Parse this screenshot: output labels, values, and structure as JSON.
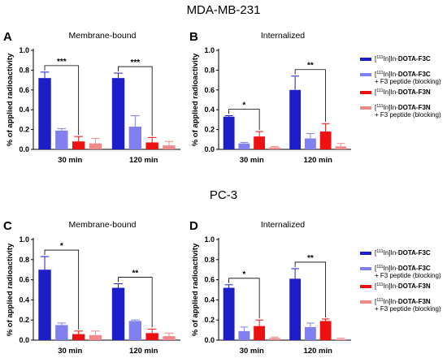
{
  "row_titles": [
    "MDA-MB-231",
    "PC-3"
  ],
  "panel_letters": [
    "A",
    "B",
    "C",
    "D"
  ],
  "panel_titles": [
    "Membrane-bound",
    "Internalized",
    "Membrane-bound",
    "Internalized"
  ],
  "legend": [
    {
      "sup": "111",
      "prefix_a": "[",
      "prefix_b": "In]In-",
      "bold": "DOTA-F3C",
      "line2": "",
      "color": "#1e1ec8"
    },
    {
      "sup": "111",
      "prefix_a": "[",
      "prefix_b": "In]In-",
      "bold": "DOTA-F3C",
      "line2": "+ F3 peptide (blocking)",
      "color": "#8080f0"
    },
    {
      "sup": "111",
      "prefix_a": "[",
      "prefix_b": "In]In-",
      "bold": "DOTA-F3N",
      "line2": "",
      "color": "#ee1111"
    },
    {
      "sup": "111",
      "prefix_a": "[",
      "prefix_b": "In]In-",
      "bold": "DOTA-F3N",
      "line2": "+ F3 peptide (blocking)",
      "color": "#f08a8a"
    }
  ],
  "chart_data": [
    {
      "type": "bar",
      "panel": "A",
      "title": "Membrane-bound",
      "ylabel": "% of applied radioactivity",
      "xlabel": "",
      "categories": [
        "30 min",
        "120 min"
      ],
      "ylim": [
        0,
        1.0
      ],
      "yticks": [
        "0.0",
        "0.2",
        "0.4",
        "0.6",
        "0.8",
        "1.0"
      ],
      "series": [
        {
          "name": "[111In]In-DOTA-F3C",
          "values": [
            0.72,
            0.72
          ],
          "errors": [
            0.06,
            0.05
          ]
        },
        {
          "name": "[111In]In-DOTA-F3C + F3 peptide (blocking)",
          "values": [
            0.19,
            0.23
          ],
          "errors": [
            0.02,
            0.11
          ]
        },
        {
          "name": "[111In]In-DOTA-F3N",
          "values": [
            0.08,
            0.07
          ],
          "errors": [
            0.05,
            0.05
          ]
        },
        {
          "name": "[111In]In-DOTA-F3N + F3 peptide (blocking)",
          "values": [
            0.06,
            0.04
          ],
          "errors": [
            0.05,
            0.04
          ]
        }
      ],
      "significance": [
        {
          "group": 0,
          "from": 0,
          "to": 2,
          "label": "***"
        },
        {
          "group": 1,
          "from": 0,
          "to": 2,
          "label": "***"
        }
      ]
    },
    {
      "type": "bar",
      "panel": "B",
      "title": "Internalized",
      "ylabel": "% of applied radioactivity",
      "xlabel": "",
      "categories": [
        "30 min",
        "120 min"
      ],
      "ylim": [
        0,
        1.0
      ],
      "yticks": [
        "0.0",
        "0.2",
        "0.4",
        "0.6",
        "0.8",
        "1.0"
      ],
      "series": [
        {
          "name": "[111In]In-DOTA-F3C",
          "values": [
            0.33,
            0.6
          ],
          "errors": [
            0.01,
            0.14
          ]
        },
        {
          "name": "[111In]In-DOTA-F3C + F3 peptide (blocking)",
          "values": [
            0.06,
            0.11
          ],
          "errors": [
            0.01,
            0.05
          ]
        },
        {
          "name": "[111In]In-DOTA-F3N",
          "values": [
            0.13,
            0.18
          ],
          "errors": [
            0.05,
            0.08
          ]
        },
        {
          "name": "[111In]In-DOTA-F3N + F3 peptide (blocking)",
          "values": [
            0.02,
            0.03
          ],
          "errors": [
            0.01,
            0.03
          ]
        }
      ],
      "significance": [
        {
          "group": 0,
          "from": 0,
          "to": 2,
          "label": "*"
        },
        {
          "group": 1,
          "from": 0,
          "to": 2,
          "label": "**"
        }
      ]
    },
    {
      "type": "bar",
      "panel": "C",
      "title": "Membrane-bound",
      "ylabel": "% of applied radioactivity",
      "xlabel": "",
      "categories": [
        "30 min",
        "120 min"
      ],
      "ylim": [
        0,
        1.0
      ],
      "yticks": [
        "0.0",
        "0.2",
        "0.4",
        "0.6",
        "0.8",
        "1.0"
      ],
      "series": [
        {
          "name": "[111In]In-DOTA-F3C",
          "values": [
            0.7,
            0.52
          ],
          "errors": [
            0.13,
            0.04
          ]
        },
        {
          "name": "[111In]In-DOTA-F3C + F3 peptide (blocking)",
          "values": [
            0.15,
            0.19
          ],
          "errors": [
            0.02,
            0.01
          ]
        },
        {
          "name": "[111In]In-DOTA-F3N",
          "values": [
            0.06,
            0.07
          ],
          "errors": [
            0.03,
            0.04
          ]
        },
        {
          "name": "[111In]In-DOTA-F3N + F3 peptide (blocking)",
          "values": [
            0.05,
            0.04
          ],
          "errors": [
            0.04,
            0.03
          ]
        }
      ],
      "significance": [
        {
          "group": 0,
          "from": 0,
          "to": 2,
          "label": "*"
        },
        {
          "group": 1,
          "from": 0,
          "to": 2,
          "label": "**"
        }
      ]
    },
    {
      "type": "bar",
      "panel": "D",
      "title": "Internalized",
      "ylabel": "% of applied radioactivity",
      "xlabel": "",
      "categories": [
        "30 min",
        "120 min"
      ],
      "ylim": [
        0,
        1.0
      ],
      "yticks": [
        "0.0",
        "0.2",
        "0.4",
        "0.6",
        "0.8",
        "1.0"
      ],
      "series": [
        {
          "name": "[111In]In-DOTA-F3C",
          "values": [
            0.52,
            0.61
          ],
          "errors": [
            0.03,
            0.1
          ]
        },
        {
          "name": "[111In]In-DOTA-F3C + F3 peptide (blocking)",
          "values": [
            0.09,
            0.13
          ],
          "errors": [
            0.04,
            0.04
          ]
        },
        {
          "name": "[111In]In-DOTA-F3N",
          "values": [
            0.14,
            0.19
          ],
          "errors": [
            0.06,
            0.02
          ]
        },
        {
          "name": "[111In]In-DOTA-F3N + F3 peptide (blocking)",
          "values": [
            0.02,
            0.01
          ],
          "errors": [
            0.01,
            0.01
          ]
        }
      ],
      "significance": [
        {
          "group": 0,
          "from": 0,
          "to": 2,
          "label": "*"
        },
        {
          "group": 1,
          "from": 0,
          "to": 2,
          "label": "**"
        }
      ]
    }
  ]
}
